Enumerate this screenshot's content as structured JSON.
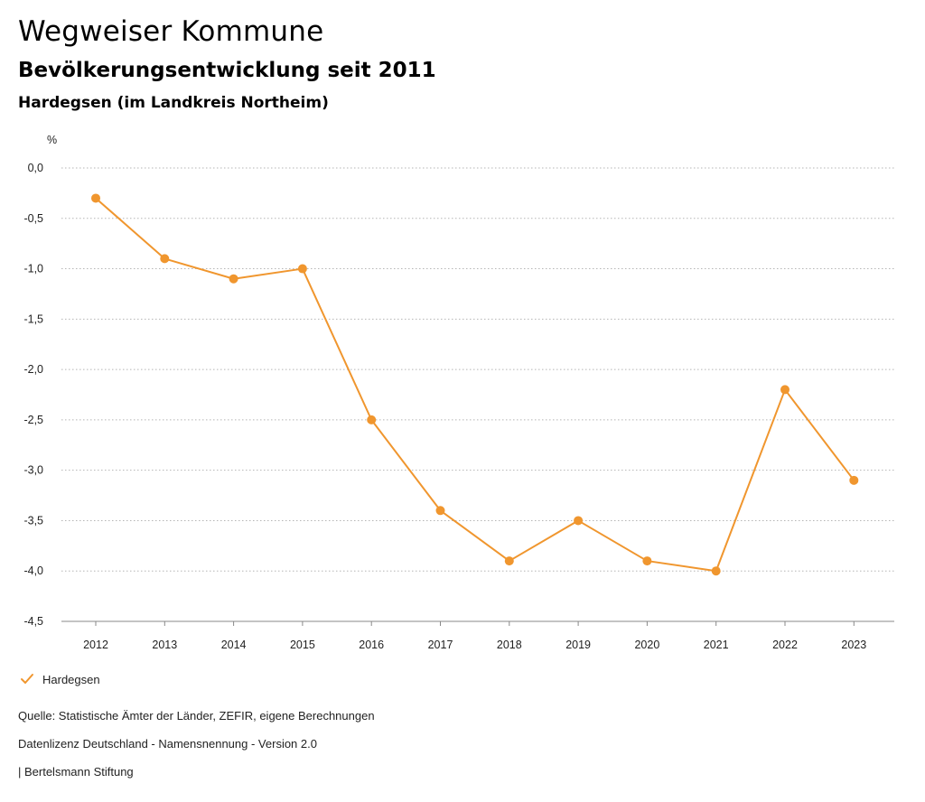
{
  "header": {
    "title": "Wegweiser Kommune",
    "subtitle": "Bevölkerungsentwicklung seit 2011",
    "region": "Hardegsen (im Landkreis Northeim)"
  },
  "chart_data": {
    "type": "line",
    "ylabel": "%",
    "xlabel": "",
    "ylim": [
      -4.5,
      0.0
    ],
    "yticks": [
      0.0,
      -0.5,
      -1.0,
      -1.5,
      -2.0,
      -2.5,
      -3.0,
      -3.5,
      -4.0,
      -4.5
    ],
    "ytick_labels": [
      "0,0",
      "-0,5",
      "-1,0",
      "-1,5",
      "-2,0",
      "-2,5",
      "-3,0",
      "-3,5",
      "-4,0",
      "-4,5"
    ],
    "grid": true,
    "x": [
      "2012",
      "2013",
      "2014",
      "2015",
      "2016",
      "2017",
      "2018",
      "2019",
      "2020",
      "2021",
      "2022",
      "2023"
    ],
    "series": [
      {
        "name": "Hardegsen",
        "color": "#f0962e",
        "values": [
          -0.3,
          -0.9,
          -1.1,
          -1.0,
          -2.5,
          -3.4,
          -3.9,
          -3.5,
          -3.9,
          -4.0,
          -2.2,
          -3.1
        ]
      }
    ],
    "legend_position": "bottom-left"
  },
  "legend": {
    "label": "Hardegsen",
    "icon": "check-icon",
    "color": "#f0962e"
  },
  "footer": {
    "source": "Quelle: Statistische Ämter der Länder, ZEFIR, eigene Berechnungen",
    "license": "Datenlizenz Deutschland - Namensnennung - Version 2.0",
    "publisher": "| Bertelsmann Stiftung"
  }
}
